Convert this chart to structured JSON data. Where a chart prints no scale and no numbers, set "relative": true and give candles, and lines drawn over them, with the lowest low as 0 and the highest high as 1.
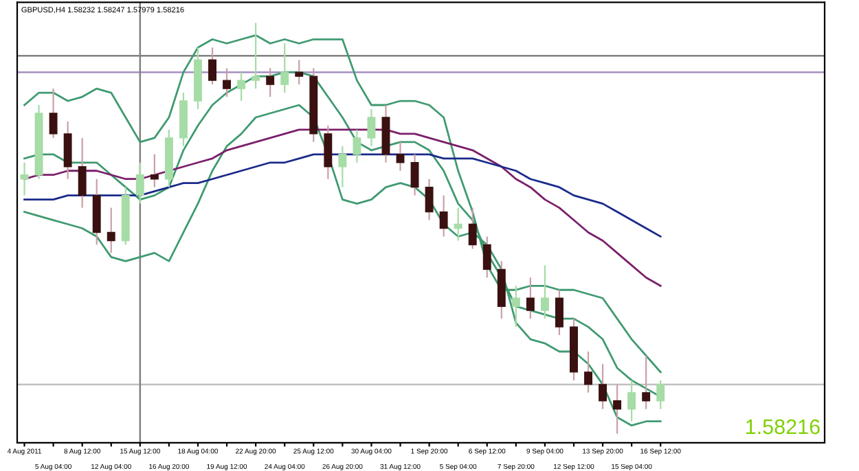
{
  "chart_data": {
    "type": "candlestick",
    "relative": true,
    "title": "GBPUSD,H4 1.58232 1.58247 1.57979 1.58216",
    "categories": [
      "4 Aug 2011",
      null,
      "5 Aug 04:00",
      null,
      "8 Aug 12:00",
      null,
      "12 Aug 04:00",
      null,
      "15 Aug 12:00",
      null,
      "16 Aug 20:00",
      null,
      "18 Aug 04:00",
      null,
      "19 Aug 12:00",
      null,
      "22 Aug 20:00",
      null,
      "24 Aug 04:00",
      null,
      "25 Aug 12:00",
      null,
      "26 Aug 20:00",
      null,
      "30 Aug 04:00",
      null,
      "31 Aug 12:00",
      null,
      "1 Sep 20:00",
      null,
      "5 Sep 04:00",
      null,
      "6 Sep 12:00",
      null,
      "7 Sep 20:00",
      null,
      "9 Sep 04:00",
      null,
      "12 Sep 12:00",
      null,
      "13 Sep 20:00",
      null,
      "15 Sep 04:00",
      null,
      "16 Sep 12:00"
    ],
    "ohlc": [
      [
        0.62,
        0.66,
        0.58,
        0.63
      ],
      [
        0.63,
        0.8,
        0.62,
        0.78
      ],
      [
        0.78,
        0.84,
        0.72,
        0.73
      ],
      [
        0.73,
        0.76,
        0.62,
        0.65
      ],
      [
        0.65,
        0.72,
        0.55,
        0.58
      ],
      [
        0.58,
        0.62,
        0.46,
        0.49
      ],
      [
        0.49,
        0.55,
        0.44,
        0.47
      ],
      [
        0.47,
        0.6,
        0.46,
        0.58
      ],
      [
        0.58,
        0.66,
        0.56,
        0.63
      ],
      [
        0.63,
        0.68,
        0.6,
        0.62
      ],
      [
        0.62,
        0.74,
        0.6,
        0.72
      ],
      [
        0.72,
        0.83,
        0.7,
        0.81
      ],
      [
        0.81,
        0.94,
        0.79,
        0.91
      ],
      [
        0.91,
        0.94,
        0.85,
        0.86
      ],
      [
        0.86,
        0.89,
        0.82,
        0.84
      ],
      [
        0.84,
        0.88,
        0.81,
        0.86
      ],
      [
        0.86,
        1.0,
        0.84,
        0.87
      ],
      [
        0.87,
        0.89,
        0.82,
        0.85
      ],
      [
        0.85,
        0.95,
        0.83,
        0.88
      ],
      [
        0.88,
        0.91,
        0.85,
        0.87
      ],
      [
        0.87,
        0.89,
        0.71,
        0.73
      ],
      [
        0.73,
        0.75,
        0.62,
        0.65
      ],
      [
        0.65,
        0.7,
        0.6,
        0.68
      ],
      [
        0.68,
        0.74,
        0.66,
        0.72
      ],
      [
        0.72,
        0.79,
        0.7,
        0.77
      ],
      [
        0.77,
        0.8,
        0.66,
        0.68
      ],
      [
        0.68,
        0.71,
        0.64,
        0.66
      ],
      [
        0.66,
        0.68,
        0.58,
        0.6
      ],
      [
        0.6,
        0.62,
        0.52,
        0.54
      ],
      [
        0.54,
        0.58,
        0.48,
        0.5
      ],
      [
        0.5,
        0.55,
        0.47,
        0.51
      ],
      [
        0.51,
        0.55,
        0.45,
        0.46
      ],
      [
        0.46,
        0.48,
        0.38,
        0.4
      ],
      [
        0.4,
        0.42,
        0.28,
        0.31
      ],
      [
        0.31,
        0.36,
        0.26,
        0.33
      ],
      [
        0.33,
        0.38,
        0.28,
        0.3
      ],
      [
        0.3,
        0.41,
        0.28,
        0.33
      ],
      [
        0.33,
        0.35,
        0.24,
        0.26
      ],
      [
        0.26,
        0.28,
        0.13,
        0.15
      ],
      [
        0.15,
        0.2,
        0.1,
        0.12
      ],
      [
        0.12,
        0.17,
        0.06,
        0.08
      ],
      [
        0.08,
        0.12,
        0.0,
        0.06
      ],
      [
        0.06,
        0.13,
        0.03,
        0.1
      ],
      [
        0.1,
        0.19,
        0.06,
        0.08
      ],
      [
        0.08,
        0.13,
        0.06,
        0.12
      ]
    ],
    "colors": [
      "#a6dca6",
      "#a6dca6",
      "#3a1010",
      "#3a1010",
      "#3a1010",
      "#3a1010",
      "#3a1010",
      "#a6dca6",
      "#a6dca6",
      "#3a1010",
      "#a6dca6",
      "#a6dca6",
      "#a6dca6",
      "#3a1010",
      "#3a1010",
      "#a6dca6",
      "#a6dca6",
      "#3a1010",
      "#a6dca6",
      "#3a1010",
      "#3a1010",
      "#3a1010",
      "#a6dca6",
      "#a6dca6",
      "#a6dca6",
      "#3a1010",
      "#3a1010",
      "#3a1010",
      "#3a1010",
      "#3a1010",
      "#a6dca6",
      "#3a1010",
      "#3a1010",
      "#3a1010",
      "#a6dca6",
      "#3a1010",
      "#a6dca6",
      "#3a1010",
      "#3a1010",
      "#3a1010",
      "#3a1010",
      "#3a1010",
      "#a6dca6",
      "#3a1010",
      "#a6dca6"
    ],
    "series": [
      {
        "type": "line",
        "color": "#3f9a70",
        "values": [
          0.8,
          0.83,
          0.83,
          0.81,
          0.82,
          0.84,
          0.83,
          0.77,
          0.71,
          0.72,
          0.77,
          0.88,
          0.94,
          0.96,
          0.95,
          0.96,
          0.97,
          0.95,
          0.96,
          0.95,
          0.96,
          0.96,
          0.96,
          0.86,
          0.8,
          0.8,
          0.81,
          0.81,
          0.8,
          0.77,
          0.64,
          0.54,
          0.41,
          0.35,
          0.35,
          0.36,
          0.36,
          0.35,
          0.35,
          0.34,
          0.33,
          0.28,
          0.23,
          0.19,
          0.15
        ]
      },
      {
        "type": "line",
        "color": "#3f9a70",
        "values": [
          0.67,
          0.68,
          0.68,
          0.66,
          0.66,
          0.66,
          0.63,
          0.6,
          0.57,
          0.58,
          0.6,
          0.69,
          0.75,
          0.8,
          0.83,
          0.85,
          0.87,
          0.87,
          0.88,
          0.88,
          0.87,
          0.82,
          0.77,
          0.71,
          0.69,
          0.7,
          0.71,
          0.71,
          0.69,
          0.64,
          0.56,
          0.52,
          0.44,
          0.38,
          0.31,
          0.3,
          0.29,
          0.28,
          0.28,
          0.26,
          0.23,
          0.16,
          0.13,
          0.11,
          0.09
        ]
      },
      {
        "type": "line",
        "color": "#3f9a70",
        "values": [
          0.54,
          0.53,
          0.52,
          0.51,
          0.5,
          0.48,
          0.43,
          0.42,
          0.43,
          0.44,
          0.42,
          0.49,
          0.56,
          0.64,
          0.7,
          0.73,
          0.77,
          0.78,
          0.79,
          0.8,
          0.77,
          0.68,
          0.57,
          0.56,
          0.57,
          0.6,
          0.61,
          0.6,
          0.57,
          0.51,
          0.48,
          0.49,
          0.46,
          0.4,
          0.27,
          0.23,
          0.22,
          0.2,
          0.2,
          0.17,
          0.12,
          0.04,
          0.02,
          0.03,
          0.03
        ]
      },
      {
        "type": "line",
        "color": "#7a1f6a",
        "values": [
          0.62,
          0.63,
          0.63,
          0.64,
          0.64,
          0.64,
          0.63,
          0.62,
          0.62,
          0.63,
          0.64,
          0.65,
          0.66,
          0.67,
          0.69,
          0.7,
          0.71,
          0.72,
          0.73,
          0.74,
          0.74,
          0.74,
          0.74,
          0.74,
          0.74,
          0.74,
          0.73,
          0.73,
          0.72,
          0.71,
          0.7,
          0.69,
          0.67,
          0.65,
          0.62,
          0.6,
          0.57,
          0.55,
          0.52,
          0.49,
          0.47,
          0.44,
          0.41,
          0.38,
          0.36
        ]
      },
      {
        "type": "line",
        "color": "#1a2a8a",
        "values": [
          0.57,
          0.57,
          0.57,
          0.58,
          0.58,
          0.58,
          0.58,
          0.58,
          0.58,
          0.59,
          0.6,
          0.61,
          0.61,
          0.62,
          0.63,
          0.64,
          0.65,
          0.66,
          0.66,
          0.67,
          0.68,
          0.68,
          0.68,
          0.68,
          0.68,
          0.68,
          0.68,
          0.68,
          0.68,
          0.67,
          0.67,
          0.67,
          0.66,
          0.65,
          0.64,
          0.62,
          0.61,
          0.6,
          0.58,
          0.57,
          0.56,
          0.54,
          0.52,
          0.5,
          0.48
        ]
      }
    ],
    "ref_lines": [
      {
        "axis": "y",
        "value": 0.92,
        "color": "#808080"
      },
      {
        "axis": "y",
        "value": 0.88,
        "color": "#a58fc0"
      },
      {
        "axis": "y",
        "value": 0.12,
        "color": "#c0c0c0"
      },
      {
        "axis": "x",
        "value": "15 Aug 12:00",
        "color": "#808080"
      }
    ],
    "annotations": [
      "1.58216"
    ],
    "grid": false,
    "legend": false
  }
}
